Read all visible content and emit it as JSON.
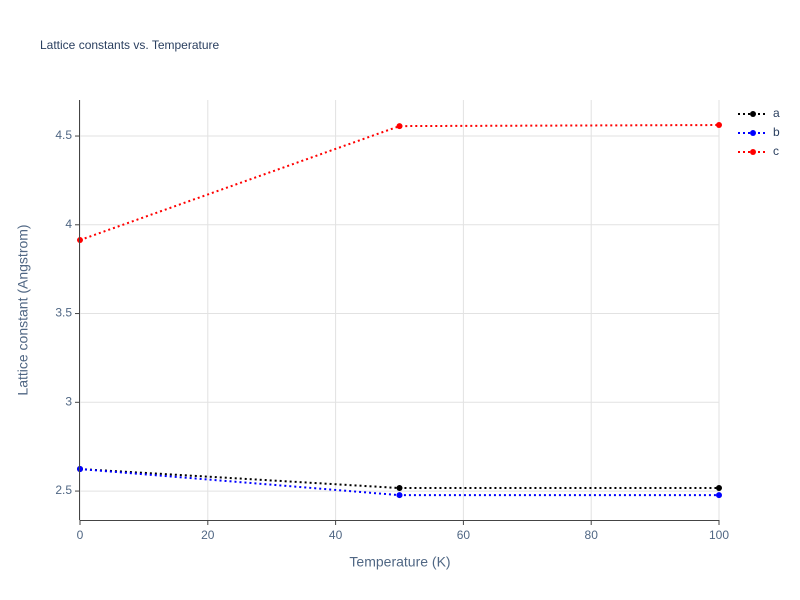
{
  "chart_data": {
    "type": "line",
    "title": "Lattice constants vs. Temperature",
    "x_label": "Temperature (K)",
    "y_label": "Lattice constant (Angstrom)",
    "x": [
      0,
      50,
      100
    ],
    "series": [
      {
        "name": "a",
        "color": "#000000",
        "values": [
          2.624,
          2.517,
          2.517
        ]
      },
      {
        "name": "b",
        "color": "#0000ff",
        "values": [
          2.624,
          2.477,
          2.477
        ]
      },
      {
        "name": "c",
        "color": "#ff0000",
        "values": [
          3.914,
          4.556,
          4.562
        ]
      }
    ],
    "xlim": [
      0,
      100
    ],
    "xticks": [
      0,
      20,
      40,
      60,
      80,
      100
    ],
    "ylim": [
      2.337,
      4.703
    ],
    "yticks": [
      2.5,
      3,
      3.5,
      4,
      4.5
    ],
    "grid": true,
    "legend": "top-right",
    "line_style": "dotted"
  }
}
